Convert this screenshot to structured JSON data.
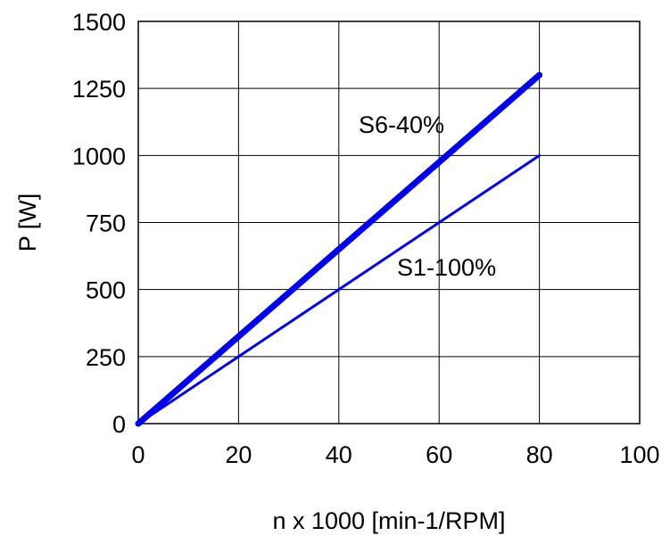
{
  "chart_data": {
    "type": "line",
    "xlabel": "n x 1000 [min-1/RPM]",
    "ylabel": "P [W]",
    "xlim": [
      0,
      100
    ],
    "ylim": [
      0,
      1500
    ],
    "x_ticks": [
      0,
      20,
      40,
      60,
      80,
      100
    ],
    "y_ticks": [
      0,
      250,
      500,
      750,
      1000,
      1250,
      1500
    ],
    "x_tick_labels": [
      "0",
      "20",
      "40",
      "60",
      "80",
      "100"
    ],
    "y_tick_labels": [
      "0",
      "250",
      "500",
      "750",
      "1000",
      "1250",
      "1500"
    ],
    "grid": true,
    "series": [
      {
        "name": "S6-40%",
        "x": [
          0,
          80
        ],
        "y": [
          0,
          1300
        ],
        "color": "#0000ee",
        "weight": "heavy"
      },
      {
        "name": "S1-100%",
        "x": [
          0,
          80
        ],
        "y": [
          0,
          1000
        ],
        "color": "#0000ee",
        "weight": "normal"
      }
    ]
  }
}
